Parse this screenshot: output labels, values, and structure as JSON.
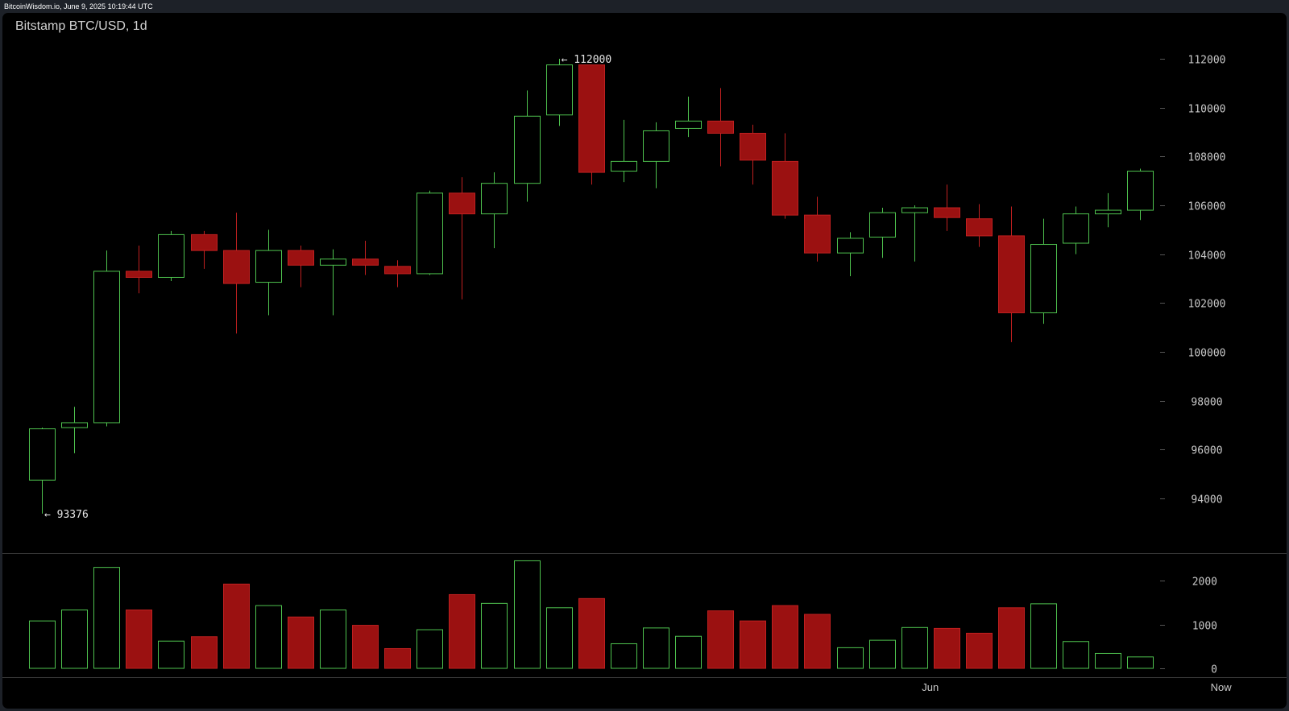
{
  "watermark": "BitcoinWisdom.io, June 9, 2025 10:19:44 UTC",
  "colors": {
    "up": "#4ec24e",
    "down": "#9b1111",
    "down_outline": "#c02020",
    "axis_text": "#c8c8c8",
    "background": "#000000"
  },
  "chart_data": {
    "type": "candlestick",
    "title": "Bitstamp BTC/USD, 1d",
    "price_axis": {
      "min": 92000,
      "max": 113000,
      "ticks": [
        94000,
        96000,
        98000,
        100000,
        102000,
        104000,
        106000,
        108000,
        110000,
        112000
      ],
      "tick_labels": [
        "94000",
        "96000",
        "98000",
        "100000",
        "102000",
        "104000",
        "106000",
        "108000",
        "110000",
        "112000"
      ]
    },
    "volume_axis": {
      "min": 0,
      "max": 2600,
      "ticks": [
        0,
        1000,
        2000
      ],
      "tick_labels": [
        "0",
        "1000",
        "2000"
      ]
    },
    "x_axis": {
      "labels": [
        {
          "text": "Jun",
          "index": 27.5
        },
        {
          "text": "Now",
          "index": 36.5
        }
      ]
    },
    "annotations": [
      {
        "text": "← 112000",
        "index": 16,
        "value": 112000
      },
      {
        "text": "← 93376",
        "index": 0,
        "value": 93376
      }
    ],
    "candles": [
      {
        "o": 94750,
        "h": 96900,
        "l": 93376,
        "c": 96850,
        "v": 1080
      },
      {
        "o": 96900,
        "h": 97750,
        "l": 95850,
        "c": 97100,
        "v": 1330
      },
      {
        "o": 97100,
        "h": 104150,
        "l": 96950,
        "c": 103300,
        "v": 2300
      },
      {
        "o": 103300,
        "h": 104350,
        "l": 102400,
        "c": 103050,
        "v": 1330
      },
      {
        "o": 103050,
        "h": 104950,
        "l": 102900,
        "c": 104800,
        "v": 620
      },
      {
        "o": 104800,
        "h": 104950,
        "l": 103400,
        "c": 104150,
        "v": 720
      },
      {
        "o": 104150,
        "h": 105700,
        "l": 100750,
        "c": 102800,
        "v": 1920
      },
      {
        "o": 102850,
        "h": 105000,
        "l": 101500,
        "c": 104150,
        "v": 1430
      },
      {
        "o": 104150,
        "h": 104350,
        "l": 102650,
        "c": 103550,
        "v": 1170
      },
      {
        "o": 103550,
        "h": 104200,
        "l": 101500,
        "c": 103800,
        "v": 1330
      },
      {
        "o": 103800,
        "h": 104550,
        "l": 103150,
        "c": 103550,
        "v": 980
      },
      {
        "o": 103500,
        "h": 103750,
        "l": 102650,
        "c": 103200,
        "v": 450
      },
      {
        "o": 103200,
        "h": 106600,
        "l": 103150,
        "c": 106500,
        "v": 880
      },
      {
        "o": 106500,
        "h": 107150,
        "l": 102150,
        "c": 105650,
        "v": 1680
      },
      {
        "o": 105650,
        "h": 107350,
        "l": 104250,
        "c": 106900,
        "v": 1480
      },
      {
        "o": 106900,
        "h": 110700,
        "l": 106150,
        "c": 109650,
        "v": 2450
      },
      {
        "o": 109700,
        "h": 112000,
        "l": 109250,
        "c": 111750,
        "v": 1380
      },
      {
        "o": 111750,
        "h": 111750,
        "l": 106850,
        "c": 107350,
        "v": 1590
      },
      {
        "o": 107400,
        "h": 109500,
        "l": 106950,
        "c": 107800,
        "v": 560
      },
      {
        "o": 107800,
        "h": 109400,
        "l": 106700,
        "c": 109050,
        "v": 920
      },
      {
        "o": 109150,
        "h": 110450,
        "l": 108800,
        "c": 109450,
        "v": 730
      },
      {
        "o": 109450,
        "h": 110800,
        "l": 107600,
        "c": 108950,
        "v": 1310
      },
      {
        "o": 108950,
        "h": 109300,
        "l": 106850,
        "c": 107850,
        "v": 1080
      },
      {
        "o": 107800,
        "h": 108950,
        "l": 105450,
        "c": 105600,
        "v": 1430
      },
      {
        "o": 105600,
        "h": 106350,
        "l": 103700,
        "c": 104050,
        "v": 1230
      },
      {
        "o": 104050,
        "h": 104900,
        "l": 103100,
        "c": 104650,
        "v": 470
      },
      {
        "o": 104700,
        "h": 105900,
        "l": 103850,
        "c": 105700,
        "v": 640
      },
      {
        "o": 105700,
        "h": 106000,
        "l": 103700,
        "c": 105900,
        "v": 930
      },
      {
        "o": 105900,
        "h": 106850,
        "l": 104950,
        "c": 105500,
        "v": 910
      },
      {
        "o": 105450,
        "h": 106050,
        "l": 104300,
        "c": 104750,
        "v": 800
      },
      {
        "o": 104750,
        "h": 105950,
        "l": 100400,
        "c": 101600,
        "v": 1380
      },
      {
        "o": 101600,
        "h": 105450,
        "l": 101150,
        "c": 104400,
        "v": 1470
      },
      {
        "o": 104450,
        "h": 105950,
        "l": 104000,
        "c": 105650,
        "v": 610
      },
      {
        "o": 105650,
        "h": 106500,
        "l": 105100,
        "c": 105800,
        "v": 340
      },
      {
        "o": 105800,
        "h": 107500,
        "l": 105400,
        "c": 107400,
        "v": 260
      }
    ]
  }
}
